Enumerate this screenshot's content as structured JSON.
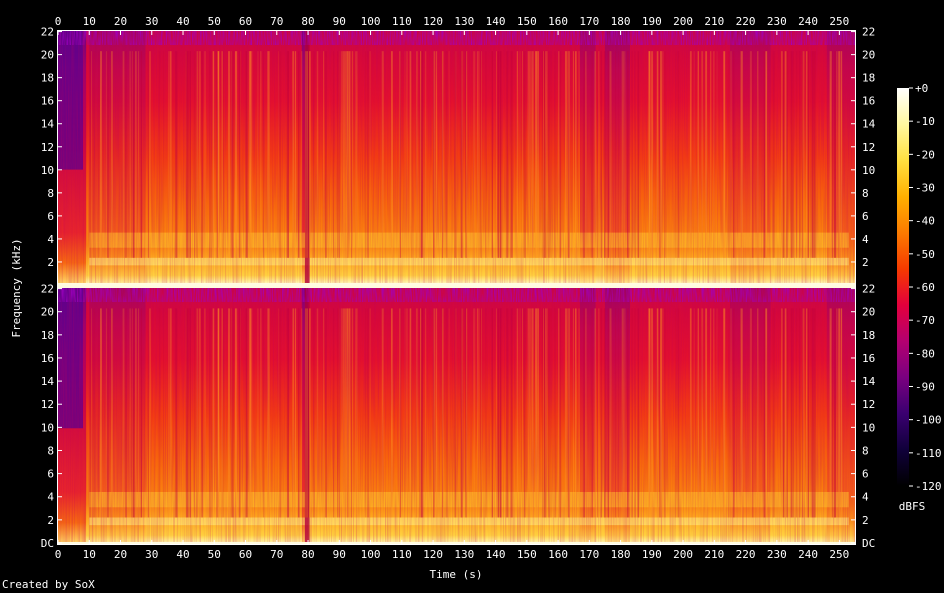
{
  "chart_data": {
    "type": "heatmap",
    "title": "",
    "xlabel": "Time (s)",
    "ylabel": "Frequency (kHz)",
    "x_ticks": [
      0,
      10,
      20,
      30,
      40,
      50,
      60,
      70,
      80,
      90,
      100,
      110,
      120,
      130,
      140,
      150,
      160,
      170,
      180,
      190,
      200,
      210,
      220,
      230,
      240,
      250
    ],
    "xlim": [
      0,
      255
    ],
    "channels": [
      {
        "name": "",
        "y_tick_labels": [
          "22",
          "20",
          "18",
          "16",
          "14",
          "12",
          "10",
          "8",
          "6",
          "4",
          "2"
        ],
        "y_tick_values": [
          22,
          20,
          18,
          16,
          14,
          12,
          10,
          8,
          6,
          4,
          2
        ],
        "ylim": [
          0,
          22.05
        ]
      },
      {
        "name": "",
        "y_tick_labels": [
          "22",
          "20",
          "18",
          "16",
          "14",
          "12",
          "10",
          "8",
          "6",
          "4",
          "2",
          "DC"
        ],
        "y_tick_values": [
          22,
          20,
          18,
          16,
          14,
          12,
          10,
          8,
          6,
          4,
          2,
          0
        ],
        "ylim": [
          0,
          22.05
        ]
      }
    ],
    "colorbar": {
      "label": "dBFS",
      "tick_labels": [
        "+0",
        "-10",
        "-20",
        "-30",
        "-40",
        "-50",
        "-60",
        "-70",
        "-80",
        "-90",
        "-100",
        "-110",
        "-120"
      ],
      "tick_values": [
        0,
        -10,
        -20,
        -30,
        -40,
        -50,
        -60,
        -70,
        -80,
        -90,
        -100,
        -110,
        -120
      ],
      "range": [
        -120,
        0
      ],
      "colors": [
        "#000000",
        "#10003a",
        "#3a0070",
        "#7a0080",
        "#b40070",
        "#e3003c",
        "#f53a00",
        "#fb7a00",
        "#ffb000",
        "#ffe040",
        "#fff8a0",
        "#ffffff"
      ]
    },
    "credit": "Created by SoX"
  }
}
